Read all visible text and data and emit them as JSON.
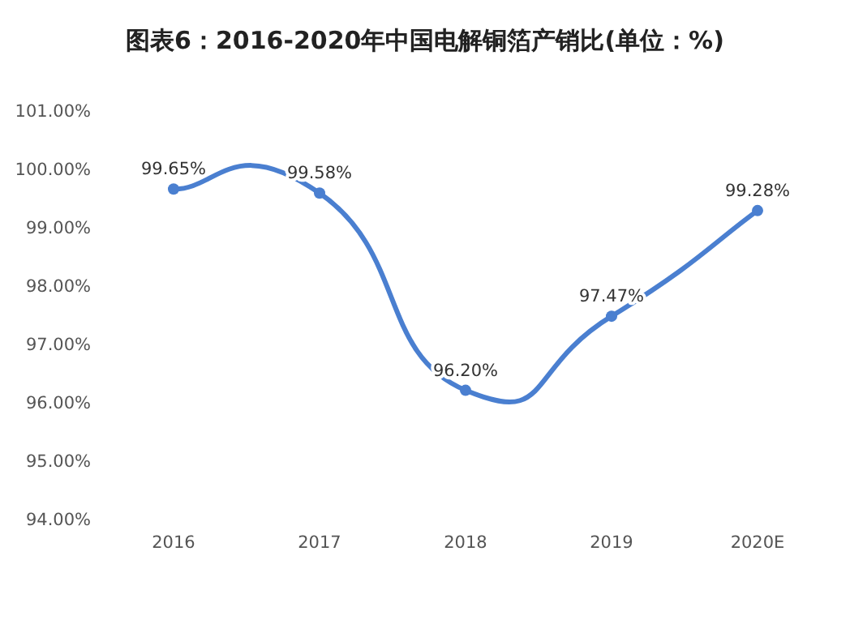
{
  "chart_data": {
    "type": "line",
    "title": "图表6：2016-2020年中国电解铜箔产销比(单位：%)",
    "categories": [
      "2016",
      "2017",
      "2018",
      "2019",
      "2020E"
    ],
    "series": [
      {
        "color": "#4a7fd0",
        "values": [
          99.65,
          99.58,
          96.2,
          97.47,
          99.28
        ],
        "value_labels": [
          "99.65%",
          "99.58%",
          "96.20%",
          "97.47%",
          "99.28%"
        ]
      }
    ],
    "ylim": [
      94,
      101
    ],
    "yticks": [
      {
        "value": 94,
        "label": "94.00%"
      },
      {
        "value": 95,
        "label": "95.00%"
      },
      {
        "value": 96,
        "label": "96.00%"
      },
      {
        "value": 97,
        "label": "97.00%"
      },
      {
        "value": 98,
        "label": "98.00%"
      },
      {
        "value": 99,
        "label": "99.00%"
      },
      {
        "value": 100,
        "label": "100.00%"
      },
      {
        "value": 101,
        "label": "101.00%"
      }
    ],
    "marker": "circle",
    "grid": false
  }
}
